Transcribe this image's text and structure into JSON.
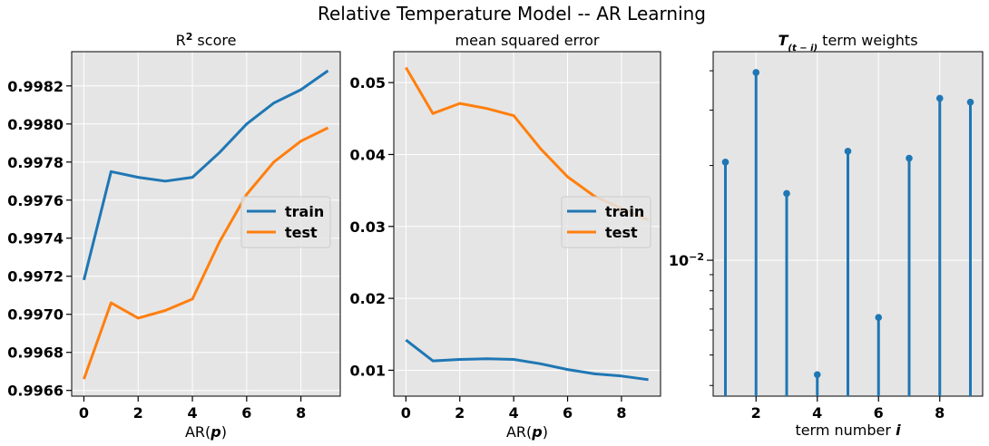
{
  "suptitle": "Relative Temperature Model -- AR Learning",
  "colors": {
    "train": "#1f77b4",
    "test": "#ff7f0e",
    "panel_bg": "#e5e5e5",
    "grid": "#ffffff"
  },
  "chart_data": [
    {
      "type": "line",
      "title_main": "R",
      "title_sup": "2",
      "title_rest": " score",
      "xlabel_main": "AR(",
      "xlabel_var": "p",
      "xlabel_end": ")",
      "x": [
        0,
        1,
        2,
        3,
        4,
        5,
        6,
        7,
        8,
        9
      ],
      "xlim": [
        -0.45,
        9.45
      ],
      "ylim": [
        0.99657,
        0.99838
      ],
      "xticks": [
        0,
        2,
        4,
        6,
        8
      ],
      "xtick_labels": [
        "0",
        "2",
        "4",
        "6",
        "8"
      ],
      "yticks": [
        0.9966,
        0.9968,
        0.997,
        0.9972,
        0.9974,
        0.9976,
        0.9978,
        0.998,
        0.9982
      ],
      "ytick_labels": [
        "0.9966",
        "0.9968",
        "0.9970",
        "0.9972",
        "0.9974",
        "0.9976",
        "0.9978",
        "0.9980",
        "0.9982"
      ],
      "grid": true,
      "legend_position": "center-right",
      "series": [
        {
          "name": "train",
          "values": [
            0.99718,
            0.99775,
            0.99772,
            0.9977,
            0.99772,
            0.99785,
            0.998,
            0.99811,
            0.99818,
            0.99828
          ]
        },
        {
          "name": "test",
          "values": [
            0.99666,
            0.99706,
            0.99698,
            0.99702,
            0.99708,
            0.99738,
            0.99763,
            0.9978,
            0.99791,
            0.99798
          ]
        }
      ]
    },
    {
      "type": "line",
      "title": "mean squared error",
      "xlabel_main": "AR(",
      "xlabel_var": "p",
      "xlabel_end": ")",
      "x": [
        0,
        1,
        2,
        3,
        4,
        5,
        6,
        7,
        8,
        9
      ],
      "xlim": [
        -0.45,
        9.45
      ],
      "ylim": [
        0.0064,
        0.0543
      ],
      "xticks": [
        0,
        2,
        4,
        6,
        8
      ],
      "xtick_labels": [
        "0",
        "2",
        "4",
        "6",
        "8"
      ],
      "yticks": [
        0.01,
        0.02,
        0.03,
        0.04,
        0.05
      ],
      "ytick_labels": [
        "0.01",
        "0.02",
        "0.03",
        "0.04",
        "0.05"
      ],
      "grid": true,
      "legend_position": "center-right",
      "series": [
        {
          "name": "train",
          "values": [
            0.0142,
            0.0113,
            0.0115,
            0.0116,
            0.0115,
            0.0109,
            0.0101,
            0.0095,
            0.0092,
            0.0087
          ]
        },
        {
          "name": "test",
          "values": [
            0.0521,
            0.0457,
            0.0471,
            0.0464,
            0.0454,
            0.0408,
            0.0369,
            0.0342,
            0.0325,
            0.0309
          ]
        }
      ]
    },
    {
      "type": "stem",
      "title_var_main": "T",
      "title_var_sub": "(t − i)",
      "title_rest": " term weights",
      "xlabel_main": "term number ",
      "xlabel_var": "i",
      "yscale": "log",
      "x": [
        1,
        2,
        3,
        4,
        5,
        6,
        7,
        8,
        9
      ],
      "values": [
        0.0205,
        0.0395,
        0.0163,
        0.00433,
        0.0222,
        0.00658,
        0.0211,
        0.0327,
        0.0318
      ],
      "xlim": [
        0.6,
        9.4
      ],
      "ylim": [
        0.0037,
        0.046
      ],
      "xticks": [
        2,
        4,
        6,
        8
      ],
      "xtick_labels": [
        "2",
        "4",
        "6",
        "8"
      ],
      "ytick_major": 0.01,
      "ytick_major_base": "10",
      "ytick_major_exp": "−2",
      "yticks_minor": [
        0.004,
        0.005,
        0.006,
        0.007,
        0.008,
        0.009,
        0.02,
        0.03,
        0.04
      ],
      "grid": true
    }
  ]
}
